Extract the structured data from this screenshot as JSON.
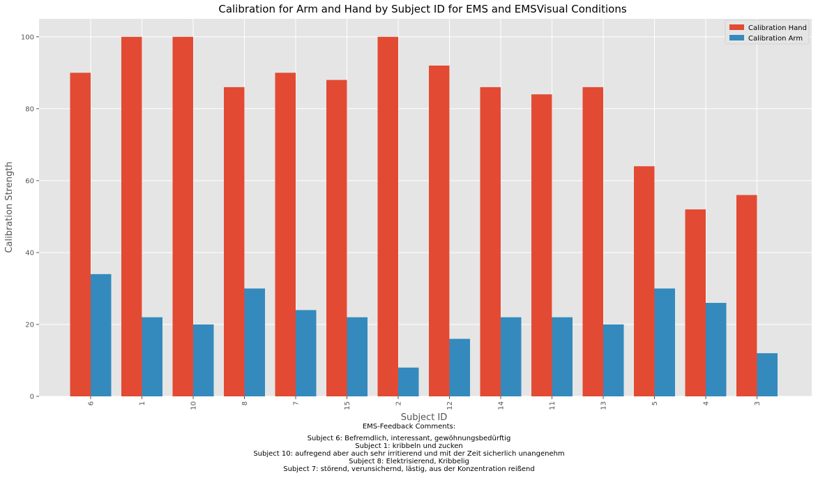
{
  "chart_data": {
    "type": "bar",
    "title": "Calibration for Arm and Hand by Subject ID for EMS and EMSVisual Conditions",
    "xlabel": "Subject ID",
    "ylabel": "Calibration Strength",
    "categories": [
      "6",
      "1",
      "10",
      "8",
      "7",
      "15",
      "2",
      "12",
      "14",
      "11",
      "13",
      "5",
      "4",
      "3"
    ],
    "series": [
      {
        "name": "Calibration Hand",
        "color": "#E24A33",
        "values": [
          90,
          100,
          100,
          86,
          90,
          88,
          100,
          92,
          86,
          84,
          86,
          64,
          52,
          56
        ]
      },
      {
        "name": "Calibration Arm",
        "color": "#348ABD",
        "values": [
          34,
          22,
          20,
          30,
          24,
          22,
          8,
          16,
          22,
          22,
          20,
          30,
          26,
          12
        ]
      }
    ],
    "ylim": [
      0,
      105
    ],
    "yticks": [
      0,
      20,
      40,
      60,
      80,
      100
    ],
    "grid": true,
    "legend_position": "top-right",
    "plot_background": "#E5E5E5",
    "grid_color": "#FFFFFF"
  },
  "footer": {
    "heading": "EMS-Feedback Comments:",
    "lines": [
      "Subject 6: Befremdlich, interessant, gewöhnungsbedürftig",
      "Subject 1: kribbeln und zucken",
      "Subject 10: aufregend aber auch sehr irritierend und mit der Zeit sicherlich unangenehm",
      "Subject 8: Elektrisierend, Kribbelig",
      "Subject 7: störend, verunsichernd, lästig, aus der Konzentration reißend"
    ]
  }
}
